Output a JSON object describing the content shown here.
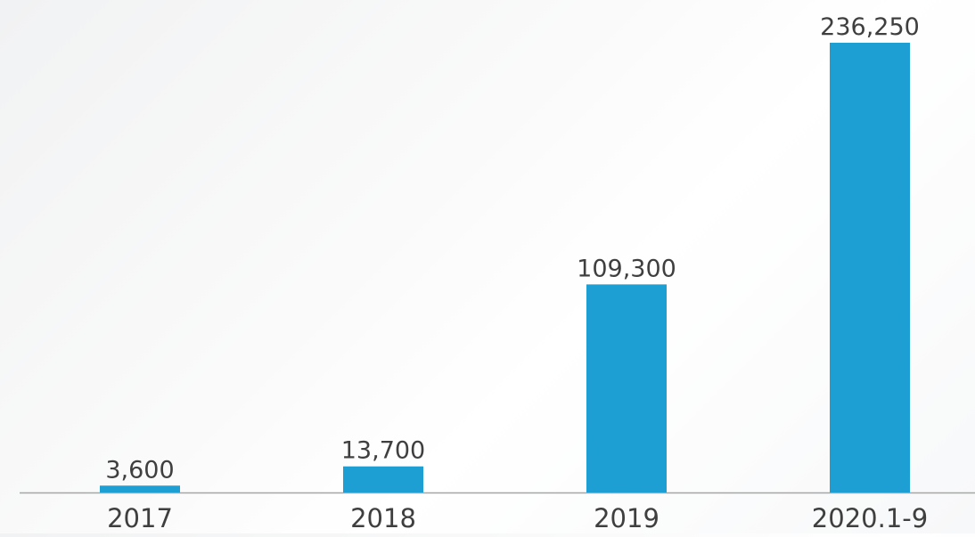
{
  "chart_data": {
    "type": "bar",
    "categories": [
      "2017",
      "2018",
      "2019",
      "2020.1-9"
    ],
    "values": [
      3600,
      13700,
      109300,
      236250
    ],
    "value_labels": [
      "3,600",
      "13,700",
      "109,300",
      "236,250"
    ],
    "title": "",
    "xlabel": "",
    "ylabel": "",
    "ylim": [
      0,
      236250
    ],
    "grid": false,
    "legend": "none"
  },
  "colors": {
    "bar": "#1e9fd4",
    "axis": "#a6a6a6",
    "label_text": "#3f3f3f"
  }
}
